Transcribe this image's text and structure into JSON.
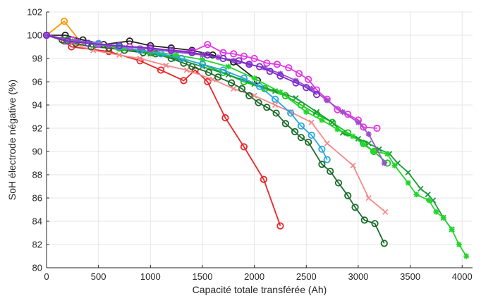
{
  "chart_data": {
    "type": "line",
    "title": "",
    "xlabel": "Capacité totale transférée (Ah)",
    "ylabel": "SoH électrode négative (%)",
    "xlim": [
      0,
      4100
    ],
    "ylim": [
      80,
      102
    ],
    "x_ticks": [
      0,
      500,
      1000,
      1500,
      2000,
      2500,
      3000,
      3500,
      4000
    ],
    "y_ticks": [
      80,
      82,
      84,
      86,
      88,
      90,
      92,
      94,
      96,
      98,
      100,
      102
    ],
    "grid": true,
    "legend": "none",
    "series": [
      {
        "color": "#e8262a",
        "marker": "circle",
        "x": [
          0,
          170,
          240,
          600,
          900,
          1100,
          1320,
          1430,
          1550,
          1720,
          1900,
          2090,
          2250
        ],
        "y": [
          100,
          99.5,
          99.0,
          98.6,
          97.8,
          97.0,
          96.1,
          97.0,
          96.0,
          92.9,
          90.4,
          87.6,
          83.6
        ]
      },
      {
        "color": "#f58a8a",
        "marker": "x",
        "x": [
          0,
          200,
          450,
          700,
          900,
          1150,
          1350,
          1600,
          1800,
          2000,
          2200,
          2350,
          2550,
          2700,
          2950,
          3100,
          3260
        ],
        "y": [
          100,
          99.4,
          98.7,
          98.3,
          98.0,
          97.4,
          97.0,
          96.2,
          95.4,
          94.8,
          94.0,
          93.4,
          92.5,
          90.7,
          88.8,
          86.0,
          84.8
        ]
      },
      {
        "color": "#ff9900",
        "marker": "circle",
        "x": [
          0,
          170,
          330
        ],
        "y": [
          100,
          101.2,
          99.4
        ]
      },
      {
        "color": "#222222",
        "marker": "circle",
        "x": [
          0,
          180,
          350,
          550,
          800,
          1000,
          1200,
          1400,
          1600,
          1800,
          2030
        ],
        "y": [
          100,
          100.0,
          99.6,
          99.2,
          99.5,
          99.1,
          98.9,
          98.7,
          98.3,
          97.7,
          96.1
        ]
      },
      {
        "color": "#1a6b2a",
        "marker": "circle",
        "x": [
          0,
          150,
          280,
          430,
          600,
          750,
          930,
          1050,
          1200,
          1320,
          1400,
          1560,
          1650,
          1780,
          1880,
          1950,
          2040,
          2120,
          2210,
          2300,
          2390,
          2450,
          2520,
          2650,
          2730,
          2810,
          2900,
          2970,
          3060,
          3160,
          3250
        ],
        "y": [
          100,
          99.6,
          99.3,
          99.0,
          98.9,
          98.7,
          98.5,
          98.4,
          98.0,
          97.6,
          97.3,
          96.8,
          96.4,
          95.9,
          95.4,
          94.8,
          94.2,
          93.8,
          93.3,
          92.4,
          91.7,
          91.2,
          90.8,
          88.9,
          88.3,
          87.3,
          86.2,
          85.2,
          84.1,
          83.8,
          82.1
        ]
      },
      {
        "color": "#14c414",
        "marker": "circle",
        "x": [
          0,
          200,
          400,
          700,
          1000,
          1300,
          1500,
          1700,
          1900,
          2100,
          2300,
          2450,
          2600,
          2750,
          2900,
          3050,
          3150,
          3280
        ],
        "y": [
          100,
          99.6,
          99.3,
          98.9,
          98.5,
          98.0,
          97.5,
          96.8,
          96.0,
          95.4,
          94.8,
          94.0,
          93.2,
          92.5,
          91.6,
          90.7,
          90.0,
          89.0
        ]
      },
      {
        "color": "#1c9a3a",
        "marker": "x",
        "x": [
          0,
          250,
          500,
          750,
          1000,
          1250,
          1500,
          1750,
          2000,
          2200,
          2400,
          2600,
          2750,
          2850,
          3000,
          3100,
          3200,
          3300,
          3380,
          3480,
          3600,
          3670,
          3720,
          3820,
          3900
        ],
        "y": [
          100,
          99.5,
          99.2,
          98.9,
          98.4,
          98.0,
          97.3,
          96.6,
          95.8,
          95.2,
          94.6,
          93.4,
          92.5,
          91.6,
          91.1,
          90.7,
          90.2,
          89.8,
          89.0,
          88.2,
          86.8,
          86.3,
          85.8,
          84.3,
          83.3
        ]
      },
      {
        "color": "#22d62a",
        "marker": "asterisk",
        "x": [
          0,
          250,
          500,
          750,
          1000,
          1250,
          1500,
          1750,
          2000,
          2250,
          2500,
          2650,
          2800,
          2950,
          3050,
          3150,
          3280,
          3350,
          3480,
          3560,
          3680,
          3750,
          3820,
          3900,
          3970,
          4040
        ],
        "y": [
          100,
          99.5,
          99.2,
          98.9,
          98.6,
          98.3,
          97.9,
          97.3,
          96.3,
          95.1,
          93.4,
          92.7,
          91.9,
          91.3,
          90.6,
          90.0,
          89.8,
          88.8,
          87.3,
          86.3,
          85.8,
          84.8,
          84.3,
          83.3,
          82.0,
          81.0
        ]
      },
      {
        "color": "#2aa7e0",
        "marker": "circle",
        "x": [
          0,
          250,
          500,
          700,
          900,
          1100,
          1300,
          1500,
          1700,
          1900,
          2050,
          2200,
          2350,
          2450,
          2550,
          2650,
          2700
        ],
        "y": [
          100,
          99.6,
          99.3,
          99.0,
          98.7,
          98.4,
          98.0,
          97.5,
          97.0,
          96.3,
          95.6,
          94.5,
          93.3,
          92.2,
          91.4,
          90.2,
          89.3
        ]
      },
      {
        "color": "#e536e5",
        "marker": "circle",
        "x": [
          0,
          250,
          500,
          800,
          1000,
          1200,
          1400,
          1550,
          1700,
          1800,
          1900,
          2000,
          2120,
          2220,
          2330,
          2430,
          2520,
          2600,
          2700,
          2800,
          2900,
          3000,
          3050,
          3180
        ],
        "y": [
          100,
          99.6,
          99.2,
          99.0,
          98.8,
          98.7,
          98.6,
          99.2,
          98.5,
          98.4,
          98.2,
          98.0,
          97.6,
          97.5,
          97.2,
          96.7,
          96.2,
          95.3,
          94.5,
          93.6,
          93.2,
          92.7,
          92.1,
          92.0
        ]
      },
      {
        "color": "#9b4ecc",
        "marker": "asterisk",
        "x": [
          0,
          300,
          600,
          900,
          1200,
          1500,
          1650,
          1800,
          1950,
          2100,
          2250,
          2400,
          2550,
          2700,
          2850,
          3000,
          3100,
          3250
        ],
        "y": [
          100,
          99.5,
          99.1,
          98.9,
          98.6,
          98.3,
          98.1,
          97.8,
          97.5,
          97.2,
          96.7,
          96.1,
          95.4,
          94.4,
          93.4,
          92.5,
          91.5,
          89.0
        ]
      },
      {
        "color": "#7a2cc9",
        "marker": "circle",
        "x": [
          0,
          200,
          400,
          700,
          1000,
          1200,
          1400,
          1550,
          1700,
          1850,
          1950,
          2050,
          2150,
          2250,
          2400,
          2500,
          2600
        ],
        "y": [
          100,
          99.5,
          99.3,
          99.1,
          98.9,
          98.7,
          98.5,
          98.3,
          98.0,
          97.8,
          97.5,
          97.3,
          96.9,
          96.5,
          95.9,
          95.5,
          94.9
        ]
      }
    ]
  }
}
